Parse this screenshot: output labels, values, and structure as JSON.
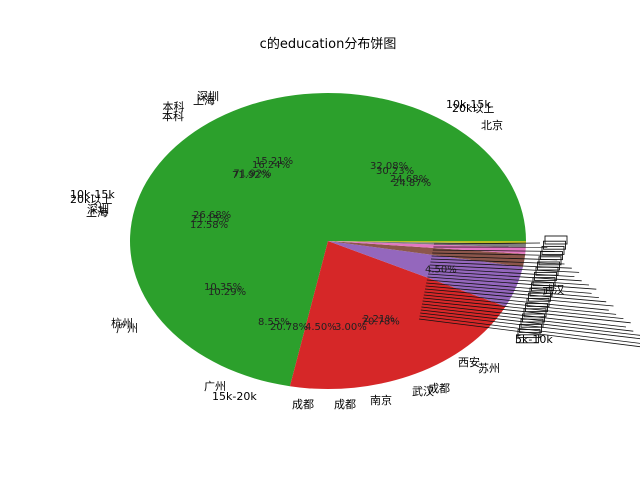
{
  "chart_data": {
    "type": "pie",
    "title": "c的education分布饼图",
    "slices": [
      {
        "label": "本科",
        "value": 71.92,
        "color": "#2ca02c"
      },
      {
        "label": "成都",
        "value": 20.78,
        "color": "#d62728"
      },
      {
        "label": "武汉",
        "value": 4.5,
        "color": "#9467bd"
      },
      {
        "label": "上海",
        "value": 1.4,
        "color": "#8c564b"
      },
      {
        "label": "北京",
        "value": 0.7,
        "color": "#e377c2"
      },
      {
        "label": "广州",
        "value": 0.4,
        "color": "#7f7f7f"
      },
      {
        "label": "深圳",
        "value": 0.3,
        "color": "#bcbd22"
      }
    ],
    "overlap_labels": [
      {
        "text": "深圳"
      },
      {
        "text": "本科"
      },
      {
        "text": "上海"
      },
      {
        "text": "10k-15k"
      },
      {
        "text": "20k以上"
      },
      {
        "text": "北京"
      },
      {
        "text": "10k-15k"
      },
      {
        "text": "20k以上"
      },
      {
        "text": "深圳"
      },
      {
        "text": "上海"
      },
      {
        "text": "杭州"
      },
      {
        "text": "广州"
      },
      {
        "text": "广州"
      },
      {
        "text": "15k-20k"
      },
      {
        "text": "成都"
      },
      {
        "text": "成都"
      },
      {
        "text": "南京"
      },
      {
        "text": "武汉"
      },
      {
        "text": "5k-10k"
      },
      {
        "text": "西安"
      },
      {
        "text": "苏州"
      }
    ],
    "overlap_pcts": [
      {
        "text": "15.21%"
      },
      {
        "text": "16.24%"
      },
      {
        "text": "71.92%"
      },
      {
        "text": "32.08%"
      },
      {
        "text": "30.23%"
      },
      {
        "text": "24.68%"
      },
      {
        "text": "24.87%"
      },
      {
        "text": "26.68%"
      },
      {
        "text": "21.15%"
      },
      {
        "text": "12.58%"
      },
      {
        "text": "10.35%"
      },
      {
        "text": "10.29%"
      },
      {
        "text": "8.55%"
      },
      {
        "text": "20.78%"
      },
      {
        "text": "4.50%"
      },
      {
        "text": "3.00%"
      },
      {
        "text": "2.21%"
      }
    ]
  }
}
